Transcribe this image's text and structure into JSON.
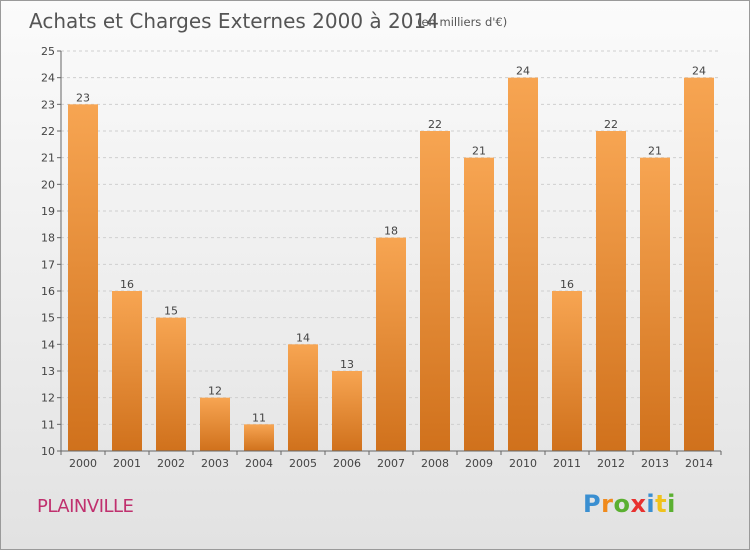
{
  "title": "Achats et Charges Externes 2000 à 2014",
  "subtitle": "(en milliers d'€)",
  "location": "PLAINVILLE",
  "logo": {
    "text": "Proxiti",
    "letters": [
      {
        "ch": "P",
        "color": "#3a8fd1"
      },
      {
        "ch": "r",
        "color": "#f08a1c"
      },
      {
        "ch": "o",
        "color": "#5bb031"
      },
      {
        "ch": "x",
        "color": "#e8312f"
      },
      {
        "ch": "i",
        "color": "#3a8fd1"
      },
      {
        "ch": "t",
        "color": "#f0c21c"
      },
      {
        "ch": "i",
        "color": "#5bb031"
      }
    ]
  },
  "colors": {
    "bar_light": "#f7a552",
    "bar_dark": "#d0711c",
    "title": "#555555",
    "location": "#c0306e",
    "grid": "#cfcfcf"
  },
  "chart_data": {
    "type": "bar",
    "categories": [
      "2000",
      "2001",
      "2002",
      "2003",
      "2004",
      "2005",
      "2006",
      "2007",
      "2008",
      "2009",
      "2010",
      "2011",
      "2012",
      "2013",
      "2014"
    ],
    "values": [
      23,
      16,
      15,
      12,
      11,
      14,
      13,
      18,
      22,
      21,
      24,
      16,
      22,
      21,
      24
    ],
    "ylim": [
      10,
      25
    ],
    "yticks": [
      10,
      11,
      12,
      13,
      14,
      15,
      16,
      17,
      18,
      19,
      20,
      21,
      22,
      23,
      24,
      25
    ],
    "grid": true,
    "data_labels": true
  }
}
